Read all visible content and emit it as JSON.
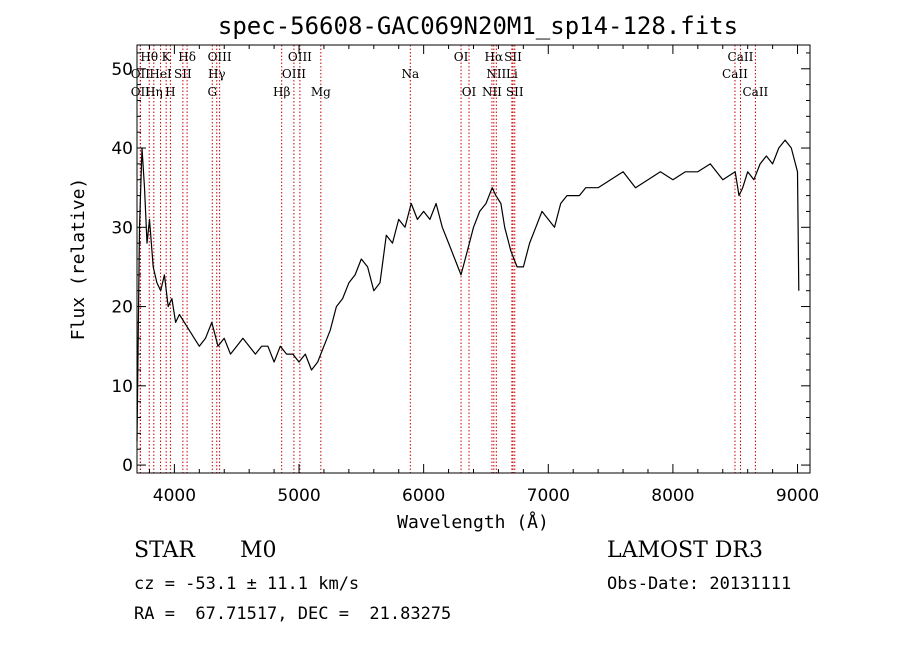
{
  "chart_data": {
    "type": "line",
    "title": "spec-56608-GAC069N20M1_sp14-128.fits",
    "xlabel": "Wavelength (Å)",
    "ylabel": "Flux (relative)",
    "xlim": [
      3700,
      9100
    ],
    "ylim": [
      -1,
      53
    ],
    "x_ticks": [
      4000,
      5000,
      6000,
      7000,
      8000,
      9000
    ],
    "y_ticks": [
      0,
      10,
      20,
      30,
      40,
      50
    ],
    "series": [
      {
        "name": "spectrum",
        "x": [
          3700,
          3720,
          3740,
          3760,
          3780,
          3800,
          3830,
          3860,
          3890,
          3920,
          3950,
          3980,
          4010,
          4040,
          4080,
          4120,
          4160,
          4200,
          4250,
          4300,
          4350,
          4400,
          4450,
          4500,
          4550,
          4600,
          4650,
          4700,
          4750,
          4800,
          4850,
          4900,
          4950,
          5000,
          5050,
          5100,
          5150,
          5200,
          5250,
          5300,
          5350,
          5400,
          5450,
          5500,
          5550,
          5600,
          5650,
          5700,
          5750,
          5800,
          5850,
          5900,
          5950,
          6000,
          6050,
          6100,
          6150,
          6200,
          6250,
          6300,
          6350,
          6400,
          6450,
          6500,
          6550,
          6580,
          6620,
          6650,
          6700,
          6750,
          6800,
          6850,
          6900,
          6950,
          7000,
          7050,
          7100,
          7150,
          7200,
          7250,
          7300,
          7400,
          7500,
          7600,
          7700,
          7800,
          7900,
          8000,
          8100,
          8200,
          8300,
          8400,
          8500,
          8530,
          8560,
          8600,
          8650,
          8700,
          8750,
          8800,
          8850,
          8900,
          8950,
          9000,
          9010
        ],
        "y": [
          3,
          30,
          40,
          35,
          28,
          31,
          25,
          23,
          22,
          24,
          20,
          21,
          18,
          19,
          18,
          17,
          16,
          15,
          16,
          18,
          15,
          16,
          14,
          15,
          16,
          15,
          14,
          15,
          15,
          13,
          15,
          14,
          14,
          13,
          14,
          12,
          13,
          15,
          17,
          20,
          21,
          23,
          24,
          26,
          25,
          22,
          23,
          29,
          28,
          31,
          30,
          33,
          31,
          32,
          31,
          33,
          30,
          28,
          26,
          24,
          27,
          30,
          32,
          33,
          35,
          34,
          33,
          30,
          27,
          25,
          25,
          28,
          30,
          32,
          31,
          30,
          33,
          34,
          34,
          34,
          35,
          35,
          36,
          37,
          35,
          36,
          37,
          36,
          37,
          37,
          38,
          36,
          37,
          34,
          35,
          37,
          36,
          38,
          39,
          38,
          40,
          41,
          40,
          37,
          22
        ]
      }
    ],
    "emission_lines": [
      {
        "label": "Hθ",
        "x": 3798,
        "row": 0
      },
      {
        "label": "K",
        "x": 3934,
        "row": 0
      },
      {
        "label": "Hδ",
        "x": 4102,
        "row": 0
      },
      {
        "label": "OIII",
        "x": 4363,
        "row": 0
      },
      {
        "label": "OIII",
        "x": 5007,
        "row": 0
      },
      {
        "label": "OI",
        "x": 6300,
        "row": 0
      },
      {
        "label": "Hα",
        "x": 6563,
        "row": 0
      },
      {
        "label": "SII",
        "x": 6717,
        "row": 0
      },
      {
        "label": "CaII",
        "x": 8542,
        "row": 0
      },
      {
        "label": "OII",
        "x": 3727,
        "row": 1
      },
      {
        "label": "HeI",
        "x": 3889,
        "row": 1
      },
      {
        "label": "SII",
        "x": 4068,
        "row": 1
      },
      {
        "label": "Hγ",
        "x": 4340,
        "row": 1
      },
      {
        "label": "OIII",
        "x": 4959,
        "row": 1
      },
      {
        "label": "Na",
        "x": 5893,
        "row": 1
      },
      {
        "label": "NII",
        "x": 6583,
        "row": 1
      },
      {
        "label": "Li",
        "x": 6708,
        "row": 1
      },
      {
        "label": "CaII",
        "x": 8498,
        "row": 1
      },
      {
        "label": "OII",
        "x": 3727,
        "row": 2
      },
      {
        "label": "Hη",
        "x": 3835,
        "row": 2
      },
      {
        "label": "H",
        "x": 3968,
        "row": 2
      },
      {
        "label": "G",
        "x": 4304,
        "row": 2
      },
      {
        "label": "Hβ",
        "x": 4861,
        "row": 2
      },
      {
        "label": "Mg",
        "x": 5175,
        "row": 2
      },
      {
        "label": "OI",
        "x": 6364,
        "row": 2
      },
      {
        "label": "NII",
        "x": 6548,
        "row": 2
      },
      {
        "label": "SII",
        "x": 6731,
        "row": 2
      },
      {
        "label": "CaII",
        "x": 8662,
        "row": 2
      }
    ]
  },
  "info": {
    "object_class": "STAR",
    "subclass": "M0",
    "survey": "LAMOST DR3",
    "cz": "cz = -53.1 ± 11.1 km/s",
    "obs_date": "Obs-Date: 20131111",
    "radec": "RA =  67.71517, DEC =  21.83275"
  },
  "colors": {
    "line_marker": "#cc0000",
    "spectrum": "#000000"
  }
}
